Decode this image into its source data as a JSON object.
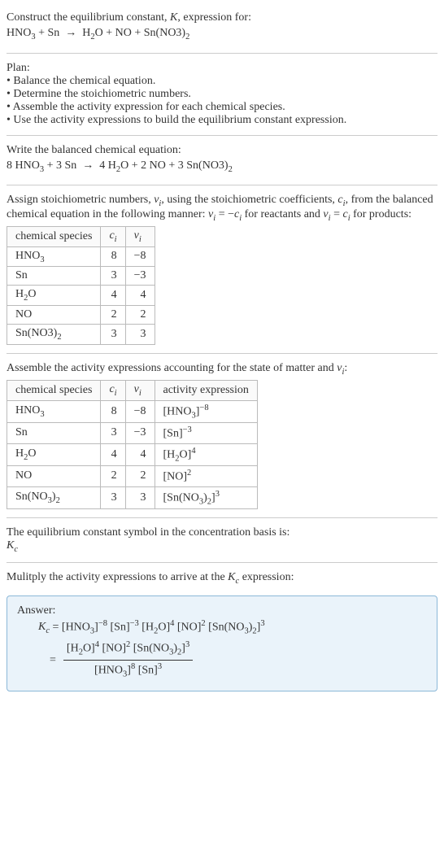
{
  "header": {
    "line1": "Construct the equilibrium constant, <span class='ital'>K</span>, expression for:",
    "line2": "HNO<span class='sub'>3</span> + Sn &nbsp;&rarr;&nbsp; H<span class='sub'>2</span>O + NO + Sn(NO3)<span class='sub'>2</span>"
  },
  "plan": {
    "title": "Plan:",
    "items": [
      "&bull; Balance the chemical equation.",
      "&bull; Determine the stoichiometric numbers.",
      "&bull; Assemble the activity expression for each chemical species.",
      "&bull; Use the activity expressions to build the equilibrium constant expression."
    ]
  },
  "balanced": {
    "title": "Write the balanced chemical equation:",
    "eq": "8 HNO<span class='sub'>3</span> + 3 Sn &nbsp;&rarr;&nbsp; 4 H<span class='sub'>2</span>O + 2 NO + 3 Sn(NO3)<span class='sub'>2</span>"
  },
  "stoich": {
    "intro": "Assign stoichiometric numbers, <span class='ital'>&nu;<span class='sub'>i</span></span>, using the stoichiometric coefficients, <span class='ital'>c<span class='sub'>i</span></span>, from the balanced chemical equation in the following manner: <span class='ital'>&nu;<span class='sub'>i</span></span> = &minus;<span class='ital'>c<span class='sub'>i</span></span> for reactants and <span class='ital'>&nu;<span class='sub'>i</span></span> = <span class='ital'>c<span class='sub'>i</span></span> for products:",
    "cols": [
      "chemical species",
      "<span class='ital'>c<span class='sub'>i</span></span>",
      "<span class='ital'>&nu;<span class='sub'>i</span></span>"
    ],
    "rows": [
      [
        "HNO<span class='sub'>3</span>",
        "8",
        "&minus;8"
      ],
      [
        "Sn",
        "3",
        "&minus;3"
      ],
      [
        "H<span class='sub'>2</span>O",
        "4",
        "4"
      ],
      [
        "NO",
        "2",
        "2"
      ],
      [
        "Sn(NO3)<span class='sub'>2</span>",
        "3",
        "3"
      ]
    ]
  },
  "activity": {
    "intro": "Assemble the activity expressions accounting for the state of matter and <span class='ital'>&nu;<span class='sub'>i</span></span>:",
    "cols": [
      "chemical species",
      "<span class='ital'>c<span class='sub'>i</span></span>",
      "<span class='ital'>&nu;<span class='sub'>i</span></span>",
      "activity expression"
    ],
    "rows": [
      [
        "HNO<span class='sub'>3</span>",
        "8",
        "&minus;8",
        "[HNO<span class='sub'>3</span>]<span class='sup'>&minus;8</span>"
      ],
      [
        "Sn",
        "3",
        "&minus;3",
        "[Sn]<span class='sup'>&minus;3</span>"
      ],
      [
        "H<span class='sub'>2</span>O",
        "4",
        "4",
        "[H<span class='sub'>2</span>O]<span class='sup'>4</span>"
      ],
      [
        "NO",
        "2",
        "2",
        "[NO]<span class='sup'>2</span>"
      ],
      [
        "Sn(NO<span class='sub'>3</span>)<span class='sub'>2</span>",
        "3",
        "3",
        "[Sn(NO<span class='sub'>3</span>)<span class='sub'>2</span>]<span class='sup'>3</span>"
      ]
    ]
  },
  "symbol": {
    "line1": "The equilibrium constant symbol in the concentration basis is:",
    "line2": "<span class='ital'>K<span class='sub'>c</span></span>"
  },
  "multiply": {
    "line": "Mulitply the activity expressions to arrive at the <span class='ital'>K<span class='sub'>c</span></span> expression:"
  },
  "answer": {
    "label": "Answer:",
    "eq1": "<span class='ital'>K<span class='sub'>c</span></span> = [HNO<span class='sub'>3</span>]<span class='sup'>&minus;8</span> [Sn]<span class='sup'>&minus;3</span> [H<span class='sub'>2</span>O]<span class='sup'>4</span> [NO]<span class='sup'>2</span> [Sn(NO<span class='sub'>3</span>)<span class='sub'>2</span>]<span class='sup'>3</span>",
    "frac_num": "[H<span class='sub'>2</span>O]<span class='sup'>4</span> [NO]<span class='sup'>2</span> [Sn(NO<span class='sub'>3</span>)<span class='sub'>2</span>]<span class='sup'>3</span>",
    "frac_den": "[HNO<span class='sub'>3</span>]<span class='sup'>8</span> [Sn]<span class='sup'>3</span>"
  }
}
